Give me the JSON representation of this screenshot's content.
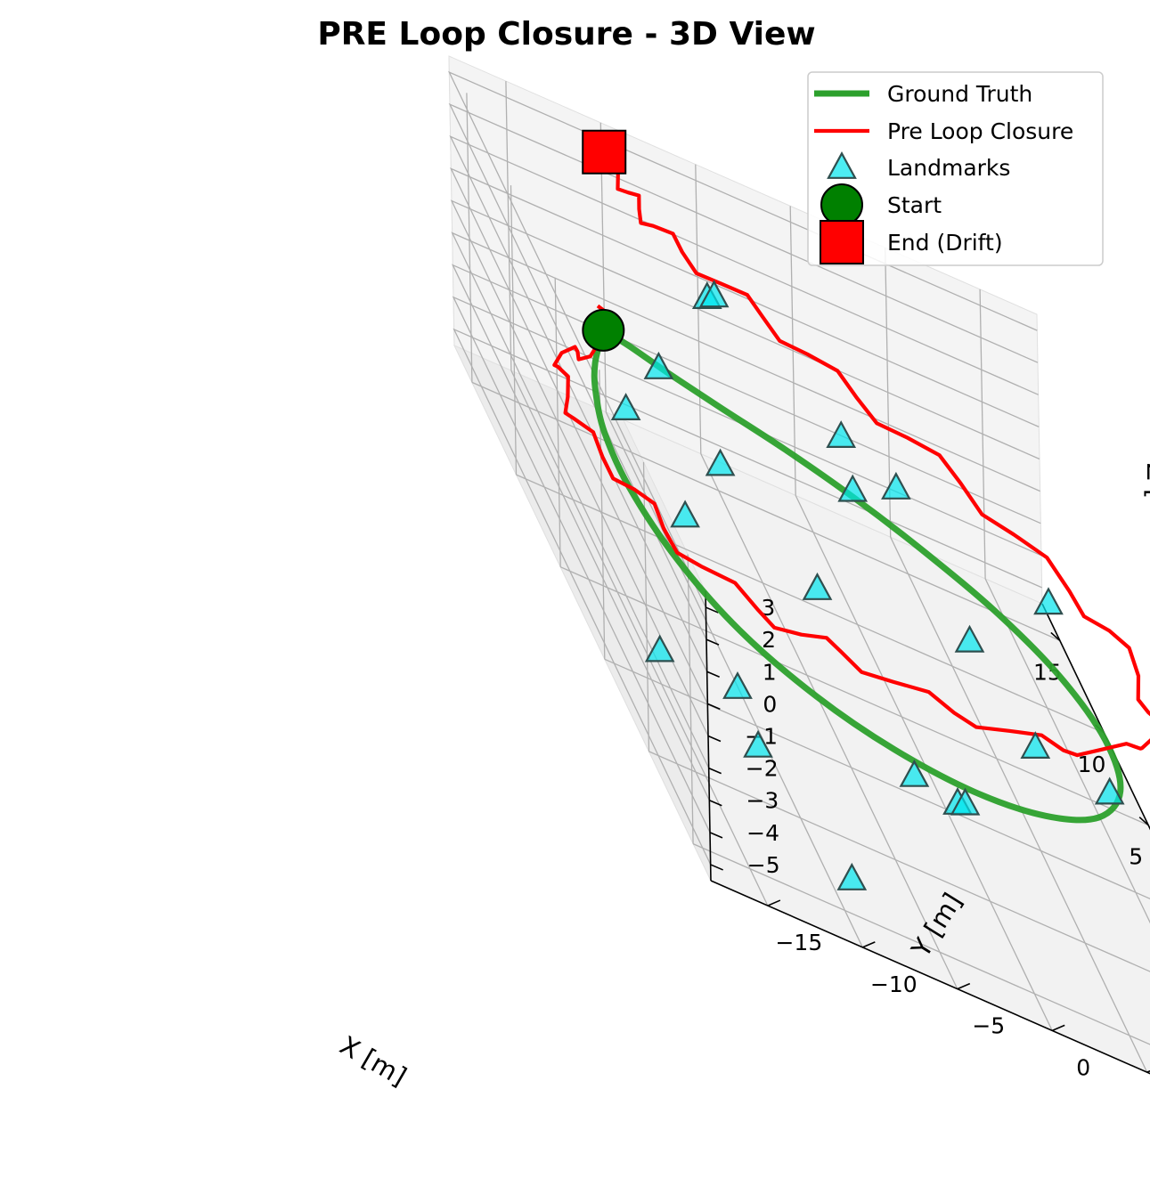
{
  "chart_data": {
    "type": "line",
    "projection": "3d",
    "title": "PRE Loop Closure - 3D View",
    "xlabel": "X [m]",
    "ylabel": "Y [m]",
    "zlabel": "Z [",
    "xlim": [
      -12,
      17
    ],
    "ylim": [
      -18,
      13
    ],
    "zlim": [
      -5.5,
      3.5
    ],
    "x_ticks": [
      "15",
      "10",
      "5",
      "0",
      "−5",
      "−10"
    ],
    "y_ticks": [
      "−15",
      "−10",
      "−5",
      "0",
      "5",
      "10"
    ],
    "z_ticks": [
      "3",
      "2",
      "1",
      "0",
      "−1",
      "−2",
      "−3",
      "−4",
      "−5"
    ],
    "grid": true,
    "legend_position": "upper right",
    "colors": {
      "ground_truth": "#2ca02c",
      "pre_loop_closure": "#ff0000",
      "landmarks": "#00e5ee",
      "start": "#008000",
      "end": "#ff0000"
    },
    "series": [
      {
        "name": "Ground Truth",
        "kind": "line",
        "x": [
          10.5,
          8.0,
          6.0,
          3.5,
          0.5,
          -3.0,
          -6.0,
          -8.2,
          -9.5,
          -10.0,
          -9.5,
          -8.0,
          -5.5,
          -2.5,
          0.5,
          3.0,
          5.0,
          6.6,
          7.8,
          8.7,
          9.5,
          10.2,
          10.5
        ],
        "y": [
          -13.0,
          -14.6,
          -15.5,
          -16.2,
          -16.3,
          -15.4,
          -13.5,
          -10.5,
          -7.0,
          -3.0,
          1.0,
          4.5,
          6.8,
          7.4,
          6.4,
          4.2,
          1.3,
          -1.7,
          -4.7,
          -7.6,
          -10.0,
          -11.8,
          -13.0
        ],
        "z": [
          0,
          0,
          0,
          0,
          0,
          0,
          0,
          0,
          0,
          0,
          0,
          0,
          0,
          0,
          0,
          0,
          0,
          0,
          0,
          0,
          0,
          0,
          0
        ]
      },
      {
        "name": "Pre Loop Closure",
        "kind": "line",
        "x": [
          12.0,
          10.0,
          8.5,
          7.0,
          6.5,
          5.5,
          4.0,
          2.0,
          0.5,
          -1.5,
          -3.0,
          -5.0,
          -6.7,
          -8.2,
          -8.8,
          -9.0,
          -9.5,
          -10.0,
          -9.8,
          -9.5,
          -8.5,
          -7.5,
          -6.5,
          -5.0,
          -3.0,
          -1.0,
          0.5,
          2.5,
          4.2,
          5.5,
          6.7,
          8.0,
          9.0,
          9.8,
          10.8,
          11.5,
          12.0,
          12.6,
          13.3,
          14.0
        ],
        "y": [
          -12.6,
          -13.4,
          -14.3,
          -15.3,
          -16.2,
          -17.5,
          -18.4,
          -18.8,
          -19.2,
          -18.6,
          -17.6,
          -17.0,
          -15.8,
          -13.5,
          -11.5,
          -9.5,
          -7.0,
          -4.0,
          -1.0,
          2.0,
          4.5,
          7.0,
          8.2,
          8.6,
          9.0,
          8.4,
          7.0,
          5.0,
          3.0,
          0.8,
          -1.3,
          -3.3,
          -5.2,
          -7.0,
          -8.6,
          -9.8,
          -10.3,
          -10.6,
          -10.8,
          -11.2
        ],
        "z": [
          0,
          0.3,
          0.5,
          0.6,
          0.8,
          1.0,
          1.2,
          1.3,
          1.4,
          1.5,
          1.6,
          1.7,
          1.8,
          1.9,
          2.0,
          2.1,
          2.1,
          2.2,
          2.3,
          2.3,
          2.4,
          2.5,
          2.6,
          2.6,
          2.7,
          2.8,
          2.8,
          2.9,
          3.0,
          3.1,
          3.1,
          3.2,
          3.3,
          3.4,
          3.4,
          3.5,
          3.6,
          3.7,
          3.8,
          4.0
        ]
      },
      {
        "name": "Landmarks",
        "kind": "scatter",
        "marker": "triangle",
        "points": [
          [
            2.5,
            -15.5,
            1.5
          ],
          [
            8.5,
            -11.0,
            0.5
          ],
          [
            7.0,
            -8.5,
            -1.0
          ],
          [
            3.5,
            -12.0,
            -1.5
          ],
          [
            -4.5,
            -13.0,
            -2.5
          ],
          [
            -6.5,
            -18.0,
            -1.5
          ],
          [
            -9.0,
            -14.0,
            -2.0
          ],
          [
            -12.0,
            -10.5,
            -3.5
          ],
          [
            6.0,
            -2.5,
            2.0
          ],
          [
            11.5,
            -7.0,
            2.0
          ],
          [
            14.0,
            -5.5,
            1.0
          ],
          [
            12.5,
            1.0,
            -2.5
          ],
          [
            8.5,
            1.5,
            0.0
          ],
          [
            3.5,
            3.0,
            -1.5
          ],
          [
            3.0,
            7.0,
            1.0
          ],
          [
            -4.0,
            3.0,
            -0.5
          ],
          [
            -8.0,
            -3.0,
            -1.5
          ],
          [
            -8.5,
            -5.5,
            -1.0
          ],
          [
            -6.0,
            6.0,
            0.0
          ],
          [
            2.5,
            -5.5,
            -1.5
          ],
          [
            -10.0,
            -3.5,
            -0.5
          ]
        ]
      },
      {
        "name": "Start",
        "kind": "point",
        "marker": "circle",
        "x": 10.5,
        "y": -13.0,
        "z": 0
      },
      {
        "name": "End (Drift)",
        "kind": "point",
        "marker": "square",
        "x": 14.0,
        "y": -11.2,
        "z": 4.0
      }
    ]
  }
}
